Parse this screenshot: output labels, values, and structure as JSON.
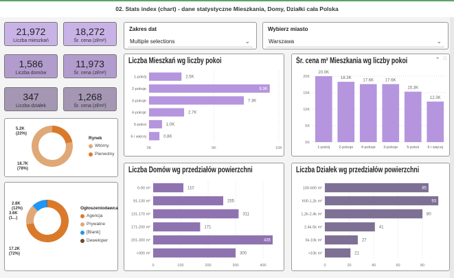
{
  "header": {
    "title": "02. Stats index (chart) - dane statystyczne Mieszkania, Domy, Działki cała Polska"
  },
  "kpis": [
    {
      "value": "21,972",
      "label": "Liczba mieszkań",
      "color": "#c9b3e6"
    },
    {
      "value": "18,272",
      "label": "Śr. cena (zł/m²)",
      "color": "#c9b3e6"
    },
    {
      "value": "1,586",
      "label": "Liczba domów",
      "color": "#b29ccd"
    },
    {
      "value": "11,973",
      "label": "Śr. cena (zł/m²)",
      "color": "#b29ccd"
    },
    {
      "value": "347",
      "label": "Liczba działek",
      "color": "#a597b3"
    },
    {
      "value": "1,268",
      "label": "Śr. cena (zł/m²)",
      "color": "#a597b3"
    }
  ],
  "slicers": [
    {
      "title": "Zakres dat",
      "value": "Multiple selections"
    },
    {
      "title": "Wybierz miasto",
      "value": "Warszawa"
    }
  ],
  "icons": {
    "dropdown": "chevron-down-icon",
    "filter": "filter-icon",
    "focus": "focus-mode-icon"
  },
  "chart_data": [
    {
      "type": "bar",
      "orientation": "horizontal",
      "title": "Liczba Mieszkań wg liczby pokoi",
      "categories": [
        "1-pokój",
        "2-pokoje",
        "3-pokoje",
        "4-pokoje",
        "5-pokoi",
        "6 i więcej"
      ],
      "values": [
        2.5,
        9.3,
        7.3,
        2.7,
        1.0,
        0.8
      ],
      "labels": [
        "2.5K",
        "9.3K",
        "7.3K",
        "2.7K",
        "1.0K",
        "0.8K"
      ],
      "xlim": [
        0,
        10
      ],
      "ticks": [
        "0K",
        "5K",
        "10K"
      ],
      "tick_values": [
        0,
        5,
        10
      ],
      "color": "#b595de"
    },
    {
      "type": "bar",
      "orientation": "vertical",
      "title": "Śr. cena m² Mieszkania wg liczby pokoi",
      "categories": [
        "1-pokój",
        "2-pokoje",
        "4-pokoje",
        "3-pokoje",
        "5-pokoi",
        "6 i więcej"
      ],
      "values": [
        20.0,
        18.3,
        17.6,
        17.6,
        15.3,
        12.3
      ],
      "labels": [
        "20.0K",
        "18.3K",
        "17.6K",
        "17.6K",
        "15.3K",
        "12.3K"
      ],
      "ylim": [
        0,
        20
      ],
      "ticks": [
        "0K",
        "5K",
        "10K",
        "15K",
        "20K"
      ],
      "tick_values": [
        0,
        5,
        10,
        15,
        20
      ],
      "color": "#b595de"
    },
    {
      "type": "bar",
      "orientation": "horizontal",
      "title": "Liczba Domów wg przedziałów powierzchni",
      "categories": [
        "0-90 m²",
        "91-130 m²",
        "131-170 m²",
        "171-200 m²",
        "201-300 m²",
        ">300 m²"
      ],
      "values": [
        110,
        255,
        311,
        171,
        435,
        300
      ],
      "labels": [
        "110",
        "255",
        "311",
        "171",
        "435",
        "300"
      ],
      "xlim": [
        0,
        460
      ],
      "ticks": [
        "0",
        "100",
        "200",
        "300",
        "400"
      ],
      "tick_values": [
        0,
        100,
        200,
        300,
        400
      ],
      "color": "#8f73b0"
    },
    {
      "type": "bar",
      "orientation": "horizontal",
      "title": "Liczba Działek wg przedziałów powierzchni",
      "categories": [
        "100-600 m²",
        "600-1,2k m²",
        "1,2k-2,4k m²",
        "2,4k-5k m²",
        "5k-10k m²",
        ">10k m²"
      ],
      "values": [
        85,
        93,
        80,
        41,
        27,
        21
      ],
      "labels": [
        "85",
        "93",
        "80",
        "41",
        "27",
        "21"
      ],
      "xlim": [
        0,
        98
      ],
      "ticks": [
        "0",
        "20",
        "40",
        "60",
        "80"
      ],
      "tick_values": [
        0,
        20,
        40,
        60,
        80
      ],
      "color": "#7e7095"
    },
    {
      "type": "pie",
      "donut": true,
      "legend_title": "Rynek",
      "legend": "right",
      "slices": [
        {
          "name": "Wtórny",
          "value": 18.7,
          "label": "18.7K (78%)",
          "color": "#e0a877"
        },
        {
          "name": "Pierwotny",
          "value": 5.2,
          "label": "5.2K (22%)",
          "color": "#d97a2b"
        }
      ]
    },
    {
      "type": "pie",
      "donut": true,
      "legend_title": "Ogłoszeniodawca",
      "legend": "right",
      "slices": [
        {
          "name": "Agencja",
          "value": 17.2,
          "label": "17.2K (72%)",
          "color": "#d97a2b"
        },
        {
          "name": "Prywatne",
          "value": 3.6,
          "label": "3.6K (1...)",
          "color": "#e0a877"
        },
        {
          "name": "[Blank]",
          "value": 2.8,
          "label": "2.8K (12%)",
          "color": "#2196f3"
        },
        {
          "name": "Deweloper",
          "value": 0.1,
          "label": "",
          "color": "#6b4a2b"
        }
      ]
    }
  ]
}
